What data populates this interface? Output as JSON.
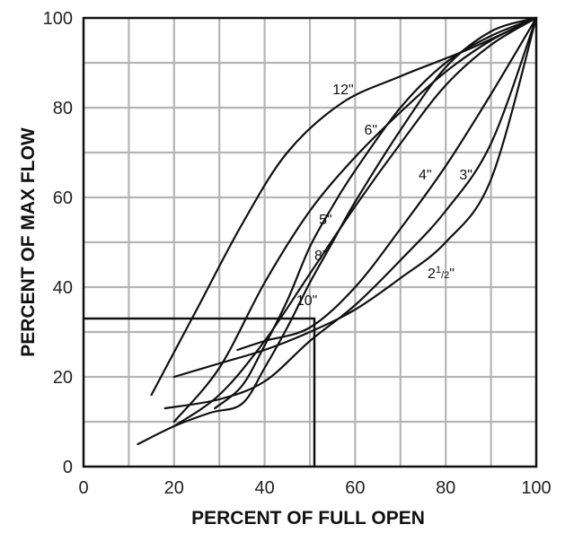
{
  "chart_data": {
    "type": "line",
    "title": "",
    "xlabel": "PERCENT OF FULL OPEN",
    "ylabel": "PERCENT OF MAX FLOW",
    "xlim": [
      0,
      100
    ],
    "ylim": [
      0,
      100
    ],
    "x_ticks": [
      "0",
      "20",
      "40",
      "60",
      "80",
      "100"
    ],
    "y_ticks": [
      "0",
      "20",
      "40",
      "60",
      "80",
      "100"
    ],
    "grid": true,
    "grid_minor_step": 10,
    "legend": "none",
    "line_color": "#111111",
    "grid_color": "#b5b5b5",
    "series": [
      {
        "name": "12\"",
        "points": [
          [
            15,
            16
          ],
          [
            25,
            35
          ],
          [
            35,
            54
          ],
          [
            45,
            70
          ],
          [
            57,
            81
          ],
          [
            70,
            87
          ],
          [
            85,
            93
          ],
          [
            100,
            100
          ]
        ],
        "label": {
          "text": "12\"",
          "x": 55,
          "y": 83
        }
      },
      {
        "name": "6\"",
        "points": [
          [
            20,
            10
          ],
          [
            30,
            22
          ],
          [
            40,
            41
          ],
          [
            50,
            57
          ],
          [
            60,
            69
          ],
          [
            70,
            79
          ],
          [
            80,
            88
          ],
          [
            90,
            95
          ],
          [
            100,
            100
          ]
        ],
        "label": {
          "text": "6\"",
          "x": 62,
          "y": 74
        }
      },
      {
        "name": "5\"",
        "points": [
          [
            20,
            9
          ],
          [
            30,
            16
          ],
          [
            40,
            28
          ],
          [
            50,
            43
          ],
          [
            60,
            58
          ],
          [
            70,
            72
          ],
          [
            80,
            85
          ],
          [
            90,
            94
          ],
          [
            100,
            100
          ]
        ],
        "label": {
          "text": "5\"",
          "x": 52,
          "y": 54
        }
      },
      {
        "name": "8\"",
        "points": [
          [
            29,
            13
          ],
          [
            35,
            18
          ],
          [
            40,
            27
          ],
          [
            45,
            37
          ],
          [
            50,
            49
          ],
          [
            55,
            58
          ],
          [
            60,
            66
          ],
          [
            70,
            80
          ],
          [
            80,
            90
          ],
          [
            90,
            96
          ],
          [
            100,
            100
          ]
        ],
        "label": {
          "text": "8\"",
          "x": 51,
          "y": 46
        }
      },
      {
        "name": "10\"",
        "points": [
          [
            12,
            5
          ],
          [
            20,
            9
          ],
          [
            28,
            12
          ],
          [
            35,
            14
          ],
          [
            40,
            22
          ],
          [
            45,
            31
          ],
          [
            50,
            41
          ],
          [
            55,
            50
          ],
          [
            60,
            59
          ],
          [
            70,
            75
          ],
          [
            80,
            89
          ],
          [
            90,
            97
          ],
          [
            100,
            100
          ]
        ],
        "label": {
          "text": "10\"",
          "x": 47,
          "y": 36
        }
      },
      {
        "name": "4\"",
        "points": [
          [
            34,
            26
          ],
          [
            40,
            28
          ],
          [
            50,
            31
          ],
          [
            60,
            40
          ],
          [
            70,
            53
          ],
          [
            80,
            67
          ],
          [
            90,
            83
          ],
          [
            100,
            100
          ]
        ],
        "label": {
          "text": "4\"",
          "x": 74,
          "y": 64
        }
      },
      {
        "name": "3\"",
        "points": [
          [
            18,
            13
          ],
          [
            30,
            15
          ],
          [
            40,
            19
          ],
          [
            50,
            28
          ],
          [
            60,
            36
          ],
          [
            70,
            46
          ],
          [
            80,
            57
          ],
          [
            90,
            72
          ],
          [
            100,
            100
          ]
        ],
        "label": {
          "text": "3\"",
          "x": 83,
          "y": 64
        }
      },
      {
        "name": "2½\"",
        "points": [
          [
            20,
            20
          ],
          [
            30,
            23
          ],
          [
            40,
            26
          ],
          [
            50,
            30
          ],
          [
            60,
            35
          ],
          [
            70,
            42
          ],
          [
            80,
            50
          ],
          [
            90,
            64
          ],
          [
            100,
            100
          ]
        ],
        "label": {
          "text": "2",
          "frac": "1/2",
          "x": 76,
          "y": 42
        }
      }
    ],
    "annotations": [
      {
        "type": "reference-line",
        "points": [
          [
            0,
            33
          ],
          [
            51,
            33
          ],
          [
            51,
            0
          ]
        ]
      }
    ]
  }
}
